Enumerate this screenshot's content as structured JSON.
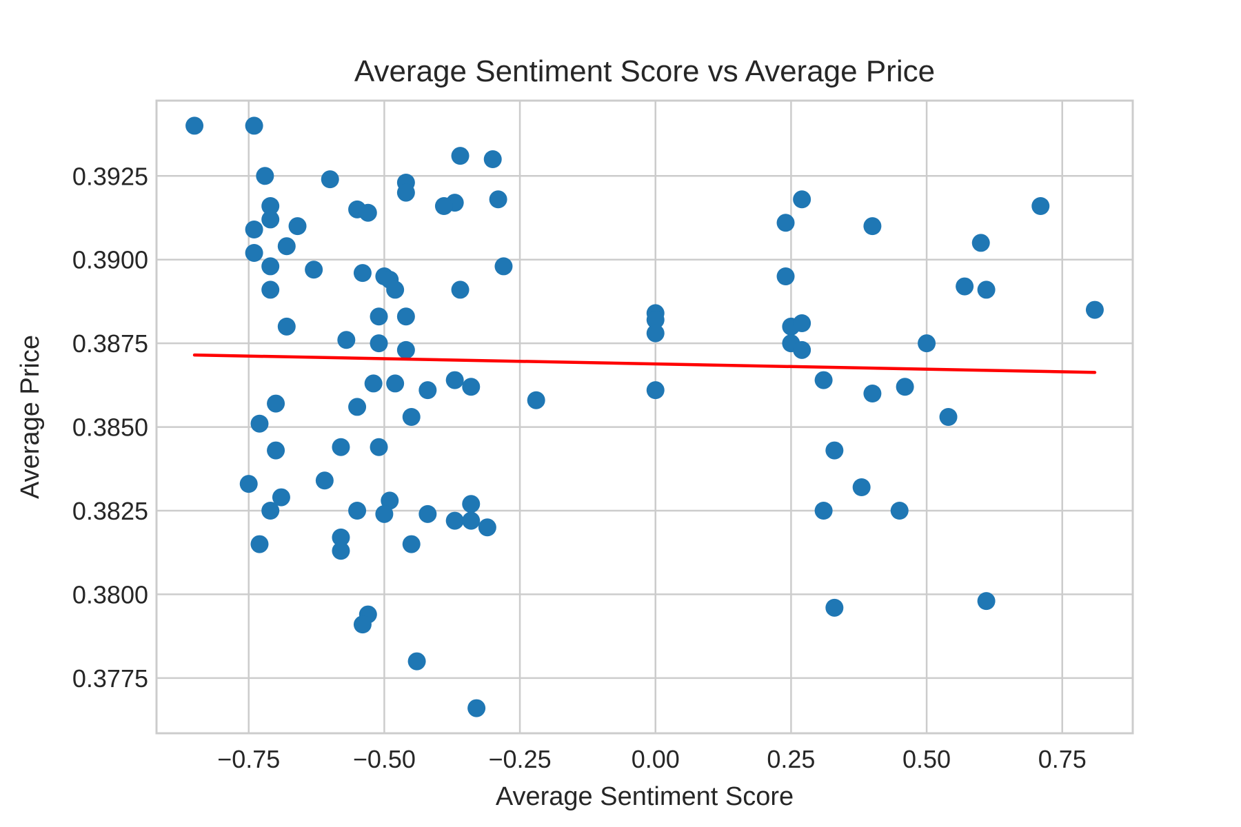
{
  "chart_data": {
    "type": "scatter",
    "title": "Average Sentiment Score vs Average Price",
    "xlabel": "Average Sentiment Score",
    "ylabel": "Average Price",
    "xlim": [
      -0.92,
      0.88
    ],
    "ylim": [
      0.37585,
      0.39475
    ],
    "xticks": [
      {
        "value": -0.75,
        "label": "−0.75"
      },
      {
        "value": -0.5,
        "label": "−0.50"
      },
      {
        "value": -0.25,
        "label": "−0.25"
      },
      {
        "value": 0.0,
        "label": "0.00"
      },
      {
        "value": 0.25,
        "label": "0.25"
      },
      {
        "value": 0.5,
        "label": "0.50"
      },
      {
        "value": 0.75,
        "label": "0.75"
      }
    ],
    "yticks": [
      {
        "value": 0.3775,
        "label": "0.3775"
      },
      {
        "value": 0.38,
        "label": "0.3800"
      },
      {
        "value": 0.3825,
        "label": "0.3825"
      },
      {
        "value": 0.385,
        "label": "0.3850"
      },
      {
        "value": 0.3875,
        "label": "0.3875"
      },
      {
        "value": 0.39,
        "label": "0.3900"
      },
      {
        "value": 0.3925,
        "label": "0.3925"
      }
    ],
    "grid": true,
    "point_color": "#1f77b4",
    "trend_color": "#ff0000",
    "points": [
      [
        -0.85,
        0.394
      ],
      [
        -0.74,
        0.394
      ],
      [
        -0.72,
        0.3925
      ],
      [
        -0.6,
        0.3924
      ],
      [
        -0.46,
        0.3923
      ],
      [
        -0.36,
        0.3931
      ],
      [
        -0.3,
        0.393
      ],
      [
        -0.46,
        0.392
      ],
      [
        -0.29,
        0.3918
      ],
      [
        -0.37,
        0.3917
      ],
      [
        -0.39,
        0.3916
      ],
      [
        -0.71,
        0.3916
      ],
      [
        -0.55,
        0.3915
      ],
      [
        -0.53,
        0.3914
      ],
      [
        -0.71,
        0.3912
      ],
      [
        -0.66,
        0.391
      ],
      [
        -0.74,
        0.3909
      ],
      [
        -0.68,
        0.3904
      ],
      [
        -0.74,
        0.3902
      ],
      [
        -0.71,
        0.3898
      ],
      [
        -0.28,
        0.3898
      ],
      [
        -0.63,
        0.3897
      ],
      [
        -0.54,
        0.3896
      ],
      [
        -0.5,
        0.3895
      ],
      [
        -0.49,
        0.3894
      ],
      [
        -0.48,
        0.3891
      ],
      [
        -0.71,
        0.3891
      ],
      [
        -0.36,
        0.3891
      ],
      [
        -0.51,
        0.3883
      ],
      [
        -0.46,
        0.3883
      ],
      [
        -0.68,
        0.388
      ],
      [
        -0.57,
        0.3876
      ],
      [
        -0.51,
        0.3875
      ],
      [
        -0.46,
        0.3873
      ],
      [
        -0.37,
        0.3864
      ],
      [
        -0.52,
        0.3863
      ],
      [
        -0.48,
        0.3863
      ],
      [
        -0.34,
        0.3862
      ],
      [
        -0.42,
        0.3861
      ],
      [
        -0.22,
        0.3858
      ],
      [
        -0.7,
        0.3857
      ],
      [
        -0.55,
        0.3856
      ],
      [
        -0.45,
        0.3853
      ],
      [
        -0.73,
        0.3851
      ],
      [
        -0.58,
        0.3844
      ],
      [
        -0.51,
        0.3844
      ],
      [
        -0.7,
        0.3843
      ],
      [
        -0.75,
        0.3833
      ],
      [
        -0.61,
        0.3834
      ],
      [
        -0.69,
        0.3829
      ],
      [
        -0.49,
        0.3828
      ],
      [
        -0.34,
        0.3827
      ],
      [
        -0.71,
        0.3825
      ],
      [
        -0.55,
        0.3825
      ],
      [
        -0.5,
        0.3824
      ],
      [
        -0.42,
        0.3824
      ],
      [
        -0.37,
        0.3822
      ],
      [
        -0.34,
        0.3822
      ],
      [
        -0.31,
        0.382
      ],
      [
        -0.58,
        0.3817
      ],
      [
        -0.73,
        0.3815
      ],
      [
        -0.45,
        0.3815
      ],
      [
        -0.58,
        0.3813
      ],
      [
        -0.53,
        0.3794
      ],
      [
        -0.54,
        0.3791
      ],
      [
        -0.44,
        0.378
      ],
      [
        -0.33,
        0.3766
      ],
      [
        0.0,
        0.3884
      ],
      [
        0.0,
        0.3882
      ],
      [
        0.0,
        0.3878
      ],
      [
        0.0,
        0.3861
      ],
      [
        0.27,
        0.3918
      ],
      [
        0.24,
        0.3911
      ],
      [
        0.24,
        0.3895
      ],
      [
        0.25,
        0.388
      ],
      [
        0.27,
        0.3881
      ],
      [
        0.25,
        0.3875
      ],
      [
        0.27,
        0.3873
      ],
      [
        0.31,
        0.3864
      ],
      [
        0.33,
        0.3843
      ],
      [
        0.31,
        0.3825
      ],
      [
        0.33,
        0.3796
      ],
      [
        0.4,
        0.391
      ],
      [
        0.4,
        0.386
      ],
      [
        0.38,
        0.3832
      ],
      [
        0.46,
        0.3862
      ],
      [
        0.45,
        0.3825
      ],
      [
        0.5,
        0.3875
      ],
      [
        0.54,
        0.3853
      ],
      [
        0.57,
        0.3892
      ],
      [
        0.6,
        0.3905
      ],
      [
        0.61,
        0.3891
      ],
      [
        0.61,
        0.3798
      ],
      [
        0.71,
        0.3916
      ],
      [
        0.81,
        0.3885
      ]
    ],
    "trend_line": [
      [
        -0.85,
        0.38715
      ],
      [
        0.81,
        0.38663
      ]
    ]
  }
}
